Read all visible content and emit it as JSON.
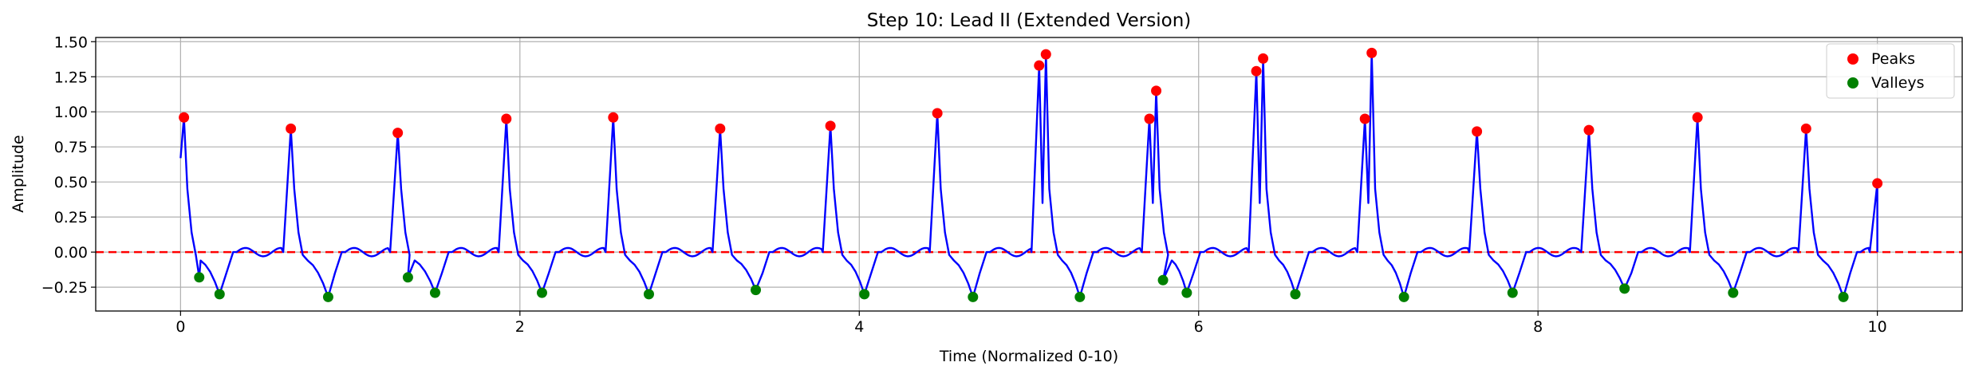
{
  "chart_data": {
    "type": "line",
    "title": "Step 10: Lead II (Extended Version)",
    "xlabel": "Time (Normalized 0-10)",
    "ylabel": "Amplitude",
    "xlim": [
      -0.5,
      10.5
    ],
    "ylim": [
      -0.42,
      1.53
    ],
    "grid": true,
    "legend_position": "upper-right",
    "x_ticks": [
      0,
      2,
      4,
      6,
      8,
      10
    ],
    "y_ticks": [
      -0.25,
      0.0,
      0.25,
      0.5,
      0.75,
      1.0,
      1.25,
      1.5
    ],
    "x_tick_labels": [
      "0",
      "2",
      "4",
      "6",
      "8",
      "10"
    ],
    "y_tick_labels": [
      "−0.25",
      "0.00",
      "0.25",
      "0.50",
      "0.75",
      "1.00",
      "1.25",
      "1.50"
    ],
    "reference_line": {
      "y": 0.0,
      "color": "#ff0000",
      "style": "dashed"
    },
    "signal": {
      "color": "#0000ff"
    },
    "peaks": {
      "name": "Peaks",
      "color": "#ff0000",
      "points": [
        [
          0.02,
          0.96
        ],
        [
          0.65,
          0.88
        ],
        [
          1.28,
          0.85
        ],
        [
          1.92,
          0.95
        ],
        [
          2.55,
          0.96
        ],
        [
          3.18,
          0.88
        ],
        [
          3.83,
          0.9
        ],
        [
          4.46,
          0.99
        ],
        [
          5.06,
          1.33
        ],
        [
          5.1,
          1.41
        ],
        [
          5.71,
          0.95
        ],
        [
          5.75,
          1.15
        ],
        [
          6.34,
          1.29
        ],
        [
          6.38,
          1.38
        ],
        [
          6.98,
          0.95
        ],
        [
          7.02,
          1.42
        ],
        [
          7.64,
          0.86
        ],
        [
          8.3,
          0.87
        ],
        [
          8.94,
          0.96
        ],
        [
          9.58,
          0.88
        ],
        [
          10.0,
          0.49
        ]
      ]
    },
    "valleys": {
      "name": "Valleys",
      "color": "#008000",
      "points": [
        [
          0.11,
          -0.18
        ],
        [
          0.23,
          -0.3
        ],
        [
          0.87,
          -0.32
        ],
        [
          1.34,
          -0.18
        ],
        [
          1.5,
          -0.29
        ],
        [
          2.13,
          -0.29
        ],
        [
          2.76,
          -0.3
        ],
        [
          3.39,
          -0.27
        ],
        [
          4.03,
          -0.3
        ],
        [
          4.67,
          -0.32
        ],
        [
          5.3,
          -0.32
        ],
        [
          5.79,
          -0.2
        ],
        [
          5.93,
          -0.29
        ],
        [
          6.57,
          -0.3
        ],
        [
          7.21,
          -0.32
        ],
        [
          7.85,
          -0.29
        ],
        [
          8.51,
          -0.26
        ],
        [
          9.15,
          -0.29
        ],
        [
          9.8,
          -0.32
        ]
      ]
    }
  }
}
